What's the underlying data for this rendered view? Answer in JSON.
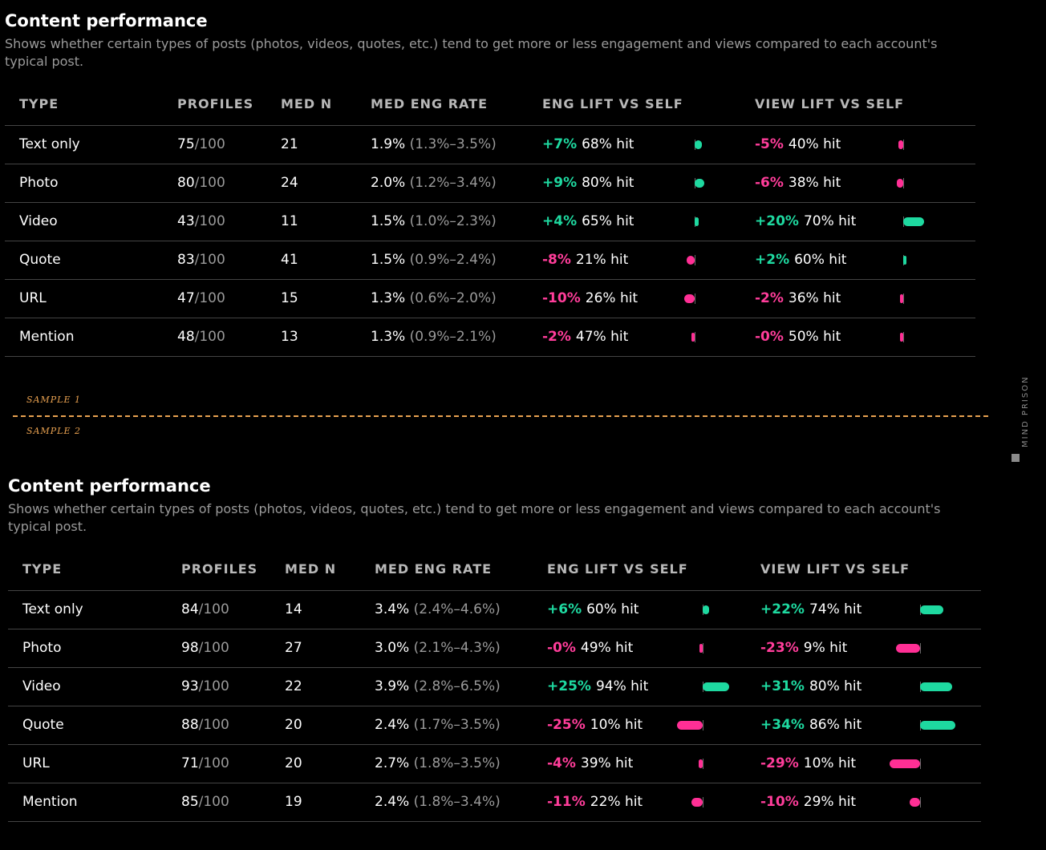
{
  "sections": [
    {
      "title": "Content performance",
      "subtitle": "Shows whether certain types of posts (photos, videos, quotes, etc.) tend to get more or less engagement and views compared to each account's typical post.",
      "headers": [
        "TYPE",
        "PROFILES",
        "MED N",
        "MED ENG RATE",
        "ENG LIFT VS SELF",
        "VIEW LIFT VS SELF"
      ],
      "rows": [
        {
          "type": "Text only",
          "profiles": "75",
          "profiles_total": "/100",
          "med_n": "21",
          "eng_rate": "1.9%",
          "eng_range": "(1.3%–3.5%)",
          "eng_lift": "+7%",
          "eng_hit": "68% hit",
          "eng_value": 7,
          "view_lift": "-5%",
          "view_hit": "40% hit",
          "view_value": -5
        },
        {
          "type": "Photo",
          "profiles": "80",
          "profiles_total": "/100",
          "med_n": "24",
          "eng_rate": "2.0%",
          "eng_range": "(1.2%–3.4%)",
          "eng_lift": "+9%",
          "eng_hit": "80% hit",
          "eng_value": 9,
          "view_lift": "-6%",
          "view_hit": "38% hit",
          "view_value": -6
        },
        {
          "type": "Video",
          "profiles": "43",
          "profiles_total": "/100",
          "med_n": "11",
          "eng_rate": "1.5%",
          "eng_range": "(1.0%–2.3%)",
          "eng_lift": "+4%",
          "eng_hit": "65% hit",
          "eng_value": 4,
          "view_lift": "+20%",
          "view_hit": "70% hit",
          "view_value": 20
        },
        {
          "type": "Quote",
          "profiles": "83",
          "profiles_total": "/100",
          "med_n": "41",
          "eng_rate": "1.5%",
          "eng_range": "(0.9%–2.4%)",
          "eng_lift": "-8%",
          "eng_hit": "21% hit",
          "eng_value": -8,
          "view_lift": "+2%",
          "view_hit": "60% hit",
          "view_value": 2
        },
        {
          "type": "URL",
          "profiles": "47",
          "profiles_total": "/100",
          "med_n": "15",
          "eng_rate": "1.3%",
          "eng_range": "(0.6%–2.0%)",
          "eng_lift": "-10%",
          "eng_hit": "26% hit",
          "eng_value": -10,
          "view_lift": "-2%",
          "view_hit": "36% hit",
          "view_value": -2
        },
        {
          "type": "Mention",
          "profiles": "48",
          "profiles_total": "/100",
          "med_n": "13",
          "eng_rate": "1.3%",
          "eng_range": "(0.9%–2.1%)",
          "eng_lift": "-2%",
          "eng_hit": "47% hit",
          "eng_value": -2,
          "view_lift": "-0%",
          "view_hit": "50% hit",
          "view_value": 0
        }
      ]
    },
    {
      "title": "Content performance",
      "subtitle": "Shows whether certain types of posts (photos, videos, quotes, etc.) tend to get more or less engagement and views compared to each account's typical post.",
      "headers": [
        "TYPE",
        "PROFILES",
        "MED N",
        "MED ENG RATE",
        "ENG LIFT VS SELF",
        "VIEW LIFT VS SELF"
      ],
      "rows": [
        {
          "type": "Text only",
          "profiles": "84",
          "profiles_total": "/100",
          "med_n": "14",
          "eng_rate": "3.4%",
          "eng_range": "(2.4%–4.6%)",
          "eng_lift": "+6%",
          "eng_hit": "60% hit",
          "eng_value": 6,
          "view_lift": "+22%",
          "view_hit": "74% hit",
          "view_value": 22
        },
        {
          "type": "Photo",
          "profiles": "98",
          "profiles_total": "/100",
          "med_n": "27",
          "eng_rate": "3.0%",
          "eng_range": "(2.1%–4.3%)",
          "eng_lift": "-0%",
          "eng_hit": "49% hit",
          "eng_value": 0,
          "view_lift": "-23%",
          "view_hit": "9% hit",
          "view_value": -23
        },
        {
          "type": "Video",
          "profiles": "93",
          "profiles_total": "/100",
          "med_n": "22",
          "eng_rate": "3.9%",
          "eng_range": "(2.8%–6.5%)",
          "eng_lift": "+25%",
          "eng_hit": "94% hit",
          "eng_value": 25,
          "view_lift": "+31%",
          "view_hit": "80% hit",
          "view_value": 31
        },
        {
          "type": "Quote",
          "profiles": "88",
          "profiles_total": "/100",
          "med_n": "20",
          "eng_rate": "2.4%",
          "eng_range": "(1.7%–3.5%)",
          "eng_lift": "-25%",
          "eng_hit": "10% hit",
          "eng_value": -25,
          "view_lift": "+34%",
          "view_hit": "86% hit",
          "view_value": 34
        },
        {
          "type": "URL",
          "profiles": "71",
          "profiles_total": "/100",
          "med_n": "20",
          "eng_rate": "2.7%",
          "eng_range": "(1.8%–3.5%)",
          "eng_lift": "-4%",
          "eng_hit": "39% hit",
          "eng_value": -4,
          "view_lift": "-29%",
          "view_hit": "10% hit",
          "view_value": -29
        },
        {
          "type": "Mention",
          "profiles": "85",
          "profiles_total": "/100",
          "med_n": "19",
          "eng_rate": "2.4%",
          "eng_range": "(1.8%–3.4%)",
          "eng_lift": "-11%",
          "eng_hit": "22% hit",
          "eng_value": -11,
          "view_lift": "-10%",
          "view_hit": "29% hit",
          "view_value": -10
        }
      ]
    }
  ],
  "sample_labels": [
    "SAMPLE 1",
    "SAMPLE 2"
  ],
  "watermark": "MIND PRISON",
  "colors": {
    "positive": "#1ed9a0",
    "negative": "#ff2f95",
    "divider": "#e8a150",
    "background": "#000000"
  }
}
